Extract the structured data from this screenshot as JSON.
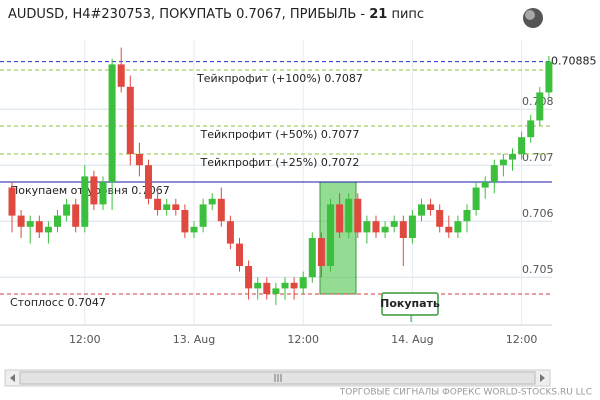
{
  "chart_data": {
    "type": "candlestick",
    "title": "AUDUSD, H4#230753, ПОКУПАТЬ 0.7067, ПРИБЫЛЬ -",
    "profit": 21,
    "profit_unit": "пипс",
    "categories": [
      null,
      null,
      null,
      null,
      null,
      null,
      null,
      null,
      "12:00",
      null,
      null,
      null,
      null,
      null,
      null,
      null,
      null,
      null,
      null,
      null,
      "13. Aug",
      null,
      null,
      null,
      null,
      null,
      null,
      null,
      null,
      null,
      null,
      null,
      "12:00",
      null,
      null,
      null,
      null,
      null,
      null,
      null,
      null,
      null,
      null,
      null,
      "14. Aug",
      null,
      null,
      null,
      null,
      null,
      null,
      null,
      null,
      null,
      null,
      null,
      "12:00",
      null,
      null,
      null
    ],
    "open": [
      0.7066,
      0.7061,
      0.7059,
      0.706,
      0.7058,
      0.7059,
      0.7061,
      0.7063,
      0.7059,
      0.7068,
      0.7063,
      0.7067,
      0.7088,
      0.7084,
      0.7072,
      0.707,
      0.7064,
      0.7062,
      0.7063,
      0.7062,
      0.7058,
      0.7059,
      0.7063,
      0.7064,
      0.706,
      0.7056,
      0.7052,
      0.7048,
      0.7049,
      0.7047,
      0.7048,
      0.7049,
      0.7048,
      0.705,
      0.7057,
      0.7052,
      0.7063,
      0.7058,
      0.7064,
      0.7058,
      0.706,
      0.7058,
      0.7059,
      0.706,
      0.7057,
      0.7061,
      0.7063,
      0.7062,
      0.7059,
      0.7058,
      0.706,
      0.7062,
      0.7066,
      0.7067,
      0.707,
      0.7071,
      0.7072,
      0.7075,
      0.7078,
      0.7083
    ],
    "high": [
      0.7067,
      0.7062,
      0.7061,
      0.7061,
      0.706,
      0.7062,
      0.7064,
      0.7064,
      0.707,
      0.7069,
      0.7068,
      0.7089,
      0.7091,
      0.7086,
      0.7074,
      0.7071,
      0.7066,
      0.7064,
      0.7064,
      0.7063,
      0.706,
      0.7064,
      0.7065,
      0.7066,
      0.7061,
      0.7057,
      0.7053,
      0.705,
      0.705,
      0.7049,
      0.705,
      0.705,
      0.7051,
      0.7058,
      0.7058,
      0.7064,
      0.7065,
      0.7065,
      0.7065,
      0.7061,
      0.7061,
      0.706,
      0.7061,
      0.7061,
      0.7062,
      0.7064,
      0.7064,
      0.7063,
      0.7061,
      0.7061,
      0.7063,
      0.7067,
      0.7068,
      0.7071,
      0.7072,
      0.7073,
      0.7076,
      0.7079,
      0.7084,
      0.70895
    ],
    "low": [
      0.7058,
      0.7057,
      0.7056,
      0.7057,
      0.7056,
      0.7058,
      0.706,
      0.7058,
      0.7058,
      0.7062,
      0.7062,
      0.7062,
      0.7083,
      0.707,
      0.7068,
      0.7063,
      0.7061,
      0.7061,
      0.7061,
      0.7057,
      0.7057,
      0.7058,
      0.7062,
      0.7059,
      0.7055,
      0.7051,
      0.7046,
      0.7046,
      0.7046,
      0.7045,
      0.7046,
      0.7046,
      0.7047,
      0.7049,
      0.705,
      0.7051,
      0.7057,
      0.7057,
      0.7057,
      0.7056,
      0.7057,
      0.7057,
      0.7058,
      0.7052,
      0.7056,
      0.706,
      0.7061,
      0.7058,
      0.7057,
      0.7057,
      0.7058,
      0.7061,
      0.7064,
      0.7065,
      0.7068,
      0.7069,
      0.7071,
      0.7074,
      0.7077,
      0.7082
    ],
    "close": [
      0.7061,
      0.7059,
      0.706,
      0.7058,
      0.7059,
      0.7061,
      0.7063,
      0.7059,
      0.7068,
      0.7063,
      0.7067,
      0.7088,
      0.7084,
      0.7072,
      0.707,
      0.7064,
      0.7062,
      0.7063,
      0.7062,
      0.7058,
      0.7059,
      0.7063,
      0.7064,
      0.706,
      0.7056,
      0.7052,
      0.7048,
      0.7049,
      0.7047,
      0.7048,
      0.7049,
      0.7048,
      0.705,
      0.7057,
      0.7052,
      0.7063,
      0.7058,
      0.7064,
      0.7058,
      0.706,
      0.7058,
      0.7059,
      0.706,
      0.7057,
      0.7061,
      0.7063,
      0.7062,
      0.7059,
      0.7058,
      0.706,
      0.7062,
      0.7066,
      0.7067,
      0.707,
      0.7071,
      0.7072,
      0.7075,
      0.7078,
      0.7083,
      0.70885
    ],
    "up_color": "#3cbf3c",
    "down_color": "#e0493f",
    "ylim": [
      0.7042,
      0.7092
    ],
    "yticks": [
      0.705,
      0.706,
      0.707,
      0.708
    ],
    "grid": true,
    "current_price": 0.70885,
    "current_color": "#2233cc",
    "take_profits": [
      {
        "label": "Тейкпрофит (+100%) 0.7087",
        "value": 0.7087
      },
      {
        "label": "Тейкпрофит (+50%) 0.7077",
        "value": 0.7077
      },
      {
        "label": "Тейкпрофит (+25%) 0.7072",
        "value": 0.7072
      }
    ],
    "take_profit_color": "#8cc63f",
    "entry": {
      "label": "Покупаем от уровня 0.7067",
      "value": 0.7067
    },
    "entry_color": "#1a1aa6",
    "stop": {
      "label": "Стоплосс 0.7047",
      "value": 0.7047
    },
    "stop_color": "#d23c3c",
    "button": "Покупать",
    "footer": "ТОРГОВЫЕ СИГНАЛЫ ФОРЕКС WORLD-STOCKS.RU LLC"
  }
}
